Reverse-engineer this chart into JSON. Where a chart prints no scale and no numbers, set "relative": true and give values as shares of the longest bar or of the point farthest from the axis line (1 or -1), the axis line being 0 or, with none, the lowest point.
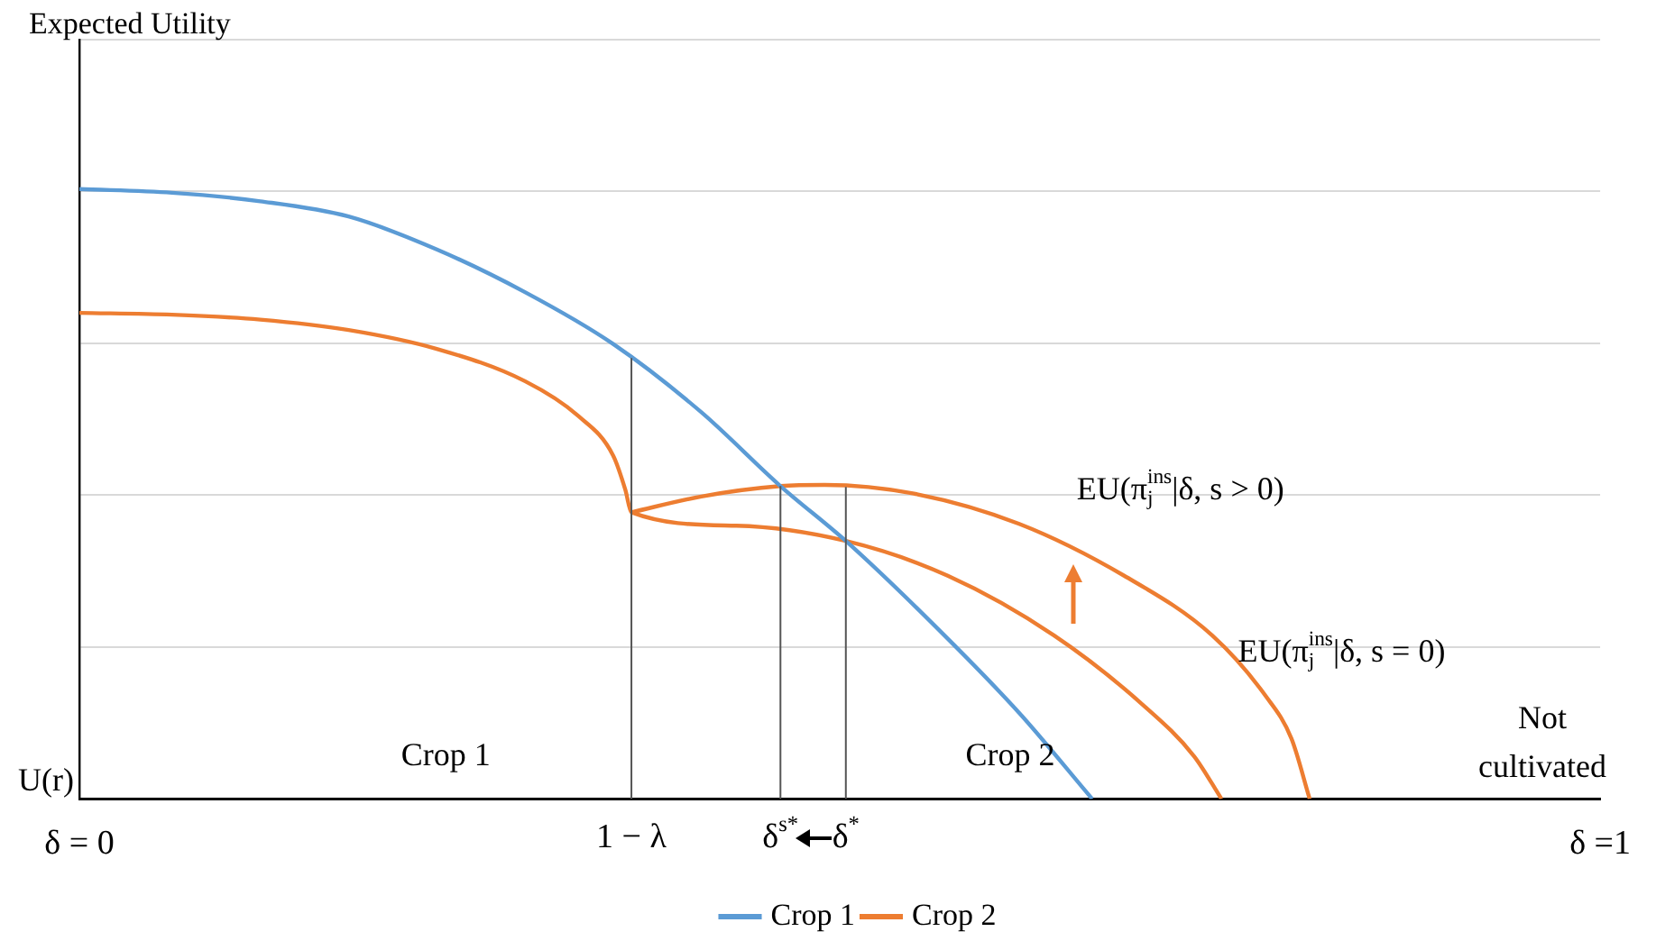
{
  "chart_data": {
    "type": "line",
    "relative": true,
    "ylabel": "Expected Utility",
    "xlim": [
      0,
      1
    ],
    "xticks": [
      {
        "value": 0,
        "label": "δ = 0"
      },
      {
        "value": 1,
        "label": "δ =1"
      }
    ],
    "grid": "y",
    "legend": "bottom",
    "marker": "none",
    "line_style": "solid",
    "series": [
      {
        "name": "Crop 1",
        "color": "#5b9bd5",
        "x": [
          0,
          0.061,
          0.119,
          0.177,
          0.235,
          0.293,
          0.351,
          0.409,
          0.461,
          0.504,
          0.56,
          0.618,
          0.666
        ],
        "values": [
          1,
          0.994,
          0.98,
          0.955,
          0.901,
          0.831,
          0.746,
          0.634,
          0.513,
          0.423,
          0.29,
          0.141,
          0
        ]
      },
      {
        "name": "Crop 2",
        "color": "#ed7d31",
        "x": [
          0,
          0.061,
          0.119,
          0.177,
          0.235,
          0.293,
          0.328,
          0.351,
          0.359,
          0.363,
          0.432,
          0.504,
          0.571,
          0.641,
          0.699,
          0.733,
          0.751
        ],
        "values": [
          0.797,
          0.794,
          0.786,
          0.769,
          0.738,
          0.685,
          0.628,
          0.563,
          0.507,
          0.47,
          0.448,
          0.423,
          0.366,
          0.268,
          0.155,
          0.07,
          0
        ]
      },
      {
        "color": "#ed7d31",
        "x": [
          0.363,
          0.409,
          0.461,
          0.49,
          0.548,
          0.618,
          0.687,
          0.745,
          0.78,
          0.797,
          0.809
        ],
        "values": [
          0.47,
          0.496,
          0.513,
          0.515,
          0.501,
          0.451,
          0.366,
          0.268,
          0.169,
          0.099,
          0
        ]
      }
    ],
    "ref_lines": [
      {
        "axis": "x",
        "value": 0.363,
        "label": "1 − λ"
      },
      {
        "axis": "x",
        "value": 0.461,
        "label": "δ$^{s*}$"
      },
      {
        "axis": "x",
        "value": 0.504,
        "label": "δ$^{*}$"
      }
    ],
    "annotations": [
      "EU(π$_{j}$$^{ins}$|δ, s > 0)",
      "EU(π$_{j}$$^{ins}$|δ, s = 0)",
      "Crop 1",
      "Crop 2",
      "Not cultivated",
      "U(r)"
    ]
  }
}
